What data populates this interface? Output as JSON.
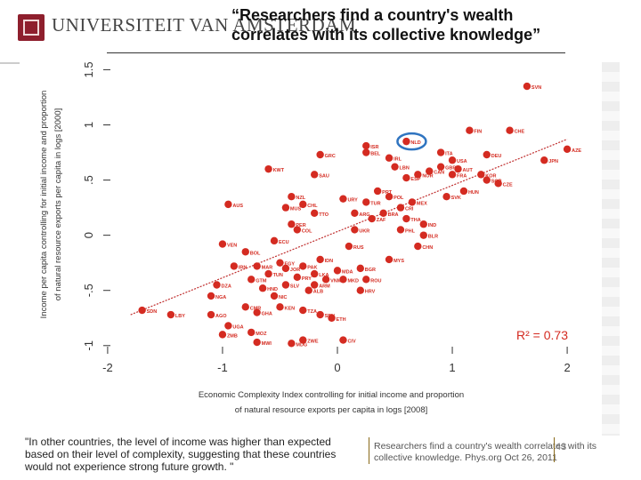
{
  "header": {
    "university_main": "UNIVERSITEIT VAN AMSTERDAM",
    "title": "“Researchers find a country's wealth correlates with its collective knowledge”"
  },
  "footer": {
    "quote": "\"In other countries, the level of income was higher than expected based on their level of complexity, suggesting that these countries would not experience strong future growth. \"",
    "citation": "Researchers find a country's wealth correlates with its collective knowledge. Phys.org Oct 26, 2011",
    "page_number": "43"
  },
  "colors": {
    "points": "#d42b21",
    "trend": "#c03030",
    "highlight": "#2f74c0",
    "text": "#333333"
  },
  "chart_data": {
    "type": "scatter",
    "xlabel": "Economic Complexity Index controlling for initial income and proportion of natural resource exports per capita in logs [2008]",
    "ylabel": "Income per capita controlling for initial income and proportion of natural resource exports per capita in logs [2000]",
    "xlim": [
      -2.1,
      2.1
    ],
    "ylim": [
      -1.05,
      1.6
    ],
    "x_ticks": [
      "-2",
      "-1",
      "0",
      "1",
      "2"
    ],
    "y_ticks": [
      "-1",
      "-.5",
      "0",
      ".5",
      "1",
      "1.5"
    ],
    "annotation": "R² = 0.73",
    "trend": {
      "x1": -1.8,
      "y1": -0.72,
      "x2": 2.0,
      "y2": 0.87
    },
    "highlight": "NLD",
    "points": [
      {
        "label": "SVN",
        "x": 1.65,
        "y": 1.35
      },
      {
        "label": "FIN",
        "x": 1.15,
        "y": 0.95
      },
      {
        "label": "CHE",
        "x": 1.5,
        "y": 0.95
      },
      {
        "label": "NLD",
        "x": 0.6,
        "y": 0.85
      },
      {
        "label": "AZE",
        "x": 2.0,
        "y": 0.78
      },
      {
        "label": "ITA",
        "x": 0.9,
        "y": 0.75
      },
      {
        "label": "DEU",
        "x": 1.3,
        "y": 0.73
      },
      {
        "label": "ISR",
        "x": 0.25,
        "y": 0.81
      },
      {
        "label": "BEL",
        "x": 0.25,
        "y": 0.75
      },
      {
        "label": "GRC",
        "x": -0.15,
        "y": 0.73
      },
      {
        "label": "KWT",
        "x": -0.6,
        "y": 0.6
      },
      {
        "label": "JPN",
        "x": 1.8,
        "y": 0.68
      },
      {
        "label": "IRL",
        "x": 0.45,
        "y": 0.7
      },
      {
        "label": "LBN",
        "x": 0.5,
        "y": 0.62
      },
      {
        "label": "GBR",
        "x": 0.9,
        "y": 0.62
      },
      {
        "label": "USA",
        "x": 1.0,
        "y": 0.68
      },
      {
        "label": "AUT",
        "x": 1.05,
        "y": 0.6
      },
      {
        "label": "CAN",
        "x": 0.8,
        "y": 0.58
      },
      {
        "label": "NOR",
        "x": 0.7,
        "y": 0.55
      },
      {
        "label": "FRA",
        "x": 1.0,
        "y": 0.55
      },
      {
        "label": "KOR",
        "x": 1.25,
        "y": 0.55
      },
      {
        "label": "ESP",
        "x": 0.6,
        "y": 0.52
      },
      {
        "label": "SGP",
        "x": 1.3,
        "y": 0.5
      },
      {
        "label": "CZE",
        "x": 1.4,
        "y": 0.47
      },
      {
        "label": "HUN",
        "x": 1.1,
        "y": 0.4
      },
      {
        "label": "SVK",
        "x": 0.95,
        "y": 0.35
      },
      {
        "label": "AUS",
        "x": -0.95,
        "y": 0.28
      },
      {
        "label": "NZL",
        "x": -0.4,
        "y": 0.35
      },
      {
        "label": "SAU",
        "x": -0.2,
        "y": 0.55
      },
      {
        "label": "PRT",
        "x": 0.35,
        "y": 0.4
      },
      {
        "label": "POL",
        "x": 0.45,
        "y": 0.35
      },
      {
        "label": "TUR",
        "x": 0.25,
        "y": 0.3
      },
      {
        "label": "MEX",
        "x": 0.65,
        "y": 0.3
      },
      {
        "label": "CRI",
        "x": 0.55,
        "y": 0.25
      },
      {
        "label": "BRA",
        "x": 0.4,
        "y": 0.2
      },
      {
        "label": "ARG",
        "x": 0.15,
        "y": 0.2
      },
      {
        "label": "MUS",
        "x": -0.45,
        "y": 0.25
      },
      {
        "label": "CHL",
        "x": -0.3,
        "y": 0.28
      },
      {
        "label": "URY",
        "x": 0.05,
        "y": 0.33
      },
      {
        "label": "TTO",
        "x": -0.2,
        "y": 0.2
      },
      {
        "label": "ZAF",
        "x": 0.3,
        "y": 0.15
      },
      {
        "label": "THA",
        "x": 0.6,
        "y": 0.15
      },
      {
        "label": "IND",
        "x": 0.75,
        "y": 0.1
      },
      {
        "label": "CHN",
        "x": 0.7,
        "y": -0.1
      },
      {
        "label": "PHL",
        "x": 0.55,
        "y": 0.05
      },
      {
        "label": "MYS",
        "x": 0.45,
        "y": -0.22
      },
      {
        "label": "PER",
        "x": -0.4,
        "y": 0.1
      },
      {
        "label": "COL",
        "x": -0.35,
        "y": 0.05
      },
      {
        "label": "BLR",
        "x": 0.75,
        "y": 0.0
      },
      {
        "label": "RUS",
        "x": 0.1,
        "y": -0.1
      },
      {
        "label": "UKR",
        "x": 0.15,
        "y": 0.05
      },
      {
        "label": "VEN",
        "x": -1.0,
        "y": -0.08
      },
      {
        "label": "ECU",
        "x": -0.55,
        "y": -0.05
      },
      {
        "label": "BOL",
        "x": -0.8,
        "y": -0.15
      },
      {
        "label": "IRN",
        "x": -0.9,
        "y": -0.28
      },
      {
        "label": "EGY",
        "x": -0.5,
        "y": -0.25
      },
      {
        "label": "MAR",
        "x": -0.7,
        "y": -0.28
      },
      {
        "label": "TUN",
        "x": -0.6,
        "y": -0.35
      },
      {
        "label": "JOR",
        "x": -0.45,
        "y": -0.3
      },
      {
        "label": "PAK",
        "x": -0.3,
        "y": -0.28
      },
      {
        "label": "LKA",
        "x": -0.2,
        "y": -0.35
      },
      {
        "label": "IDN",
        "x": -0.15,
        "y": -0.22
      },
      {
        "label": "VNM",
        "x": -0.1,
        "y": -0.4
      },
      {
        "label": "GTM",
        "x": -0.75,
        "y": -0.4
      },
      {
        "label": "HND",
        "x": -0.65,
        "y": -0.48
      },
      {
        "label": "NIC",
        "x": -0.55,
        "y": -0.55
      },
      {
        "label": "SLV",
        "x": -0.45,
        "y": -0.45
      },
      {
        "label": "PRY",
        "x": -0.35,
        "y": -0.38
      },
      {
        "label": "ALB",
        "x": -0.25,
        "y": -0.5
      },
      {
        "label": "ARM",
        "x": -0.2,
        "y": -0.45
      },
      {
        "label": "MDA",
        "x": 0.0,
        "y": -0.32
      },
      {
        "label": "MKD",
        "x": 0.05,
        "y": -0.4
      },
      {
        "label": "BGR",
        "x": 0.2,
        "y": -0.3
      },
      {
        "label": "ROU",
        "x": 0.25,
        "y": -0.4
      },
      {
        "label": "HRV",
        "x": 0.2,
        "y": -0.5
      },
      {
        "label": "DZA",
        "x": -1.05,
        "y": -0.45
      },
      {
        "label": "NGA",
        "x": -1.1,
        "y": -0.55
      },
      {
        "label": "SDN",
        "x": -1.7,
        "y": -0.68
      },
      {
        "label": "LBY",
        "x": -1.45,
        "y": -0.72
      },
      {
        "label": "AGO",
        "x": -1.1,
        "y": -0.72
      },
      {
        "label": "CMR",
        "x": -0.8,
        "y": -0.65
      },
      {
        "label": "GHA",
        "x": -0.7,
        "y": -0.7
      },
      {
        "label": "KEN",
        "x": -0.5,
        "y": -0.65
      },
      {
        "label": "TZA",
        "x": -0.3,
        "y": -0.68
      },
      {
        "label": "SEN",
        "x": -0.15,
        "y": -0.72
      },
      {
        "label": "ETH",
        "x": -0.05,
        "y": -0.75
      },
      {
        "label": "UGA",
        "x": -0.95,
        "y": -0.82
      },
      {
        "label": "MOZ",
        "x": -0.75,
        "y": -0.88
      },
      {
        "label": "ZMB",
        "x": -1.0,
        "y": -0.9
      },
      {
        "label": "MWI",
        "x": -0.7,
        "y": -0.97
      },
      {
        "label": "MDG",
        "x": -0.4,
        "y": -0.98
      },
      {
        "label": "CIV",
        "x": 0.05,
        "y": -0.95
      },
      {
        "label": "ZWE",
        "x": -0.3,
        "y": -0.95
      }
    ]
  }
}
